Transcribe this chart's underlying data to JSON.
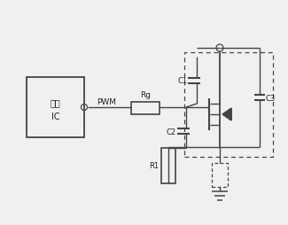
{
  "bg_color": "#f0f0f0",
  "line_color": "#444444",
  "text_color": "#222222",
  "fig_width": 3.25,
  "fig_height": 2.55,
  "dpi": 100,
  "ic_text1": "电源",
  "ic_text2": "IC",
  "pwm_label": "PWM",
  "rg_label": "Rg",
  "c1_label": "C1",
  "c2_label": "C2",
  "c3_label": "C3",
  "r1_label": "R1"
}
